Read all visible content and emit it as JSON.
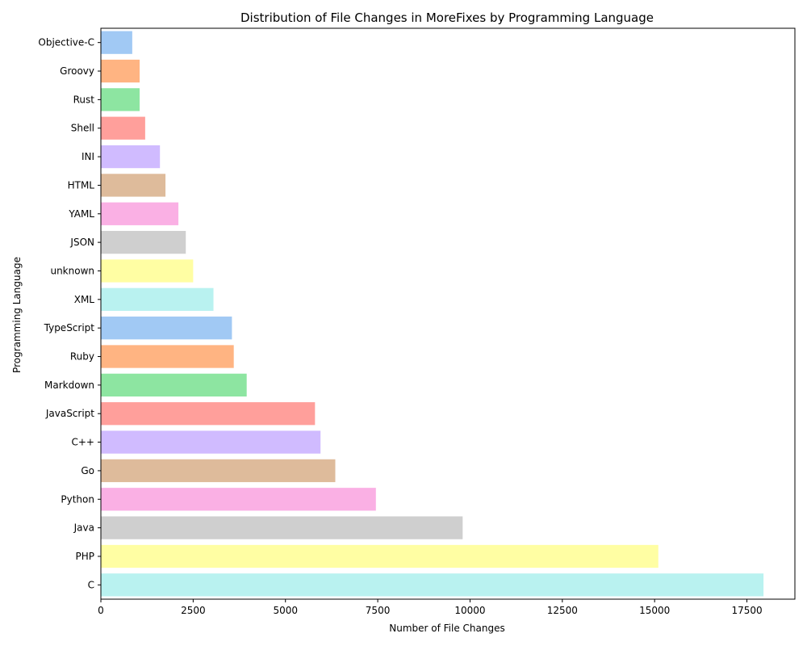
{
  "chart_data": {
    "type": "bar",
    "orientation": "horizontal",
    "title": "Distribution of File Changes in MoreFixes by Programming Language",
    "xlabel": "Number of File Changes",
    "ylabel": "Programming Language",
    "xlim": [
      0,
      18800
    ],
    "x_ticks": [
      "0",
      "2500",
      "5000",
      "7500",
      "10000",
      "12500",
      "15000",
      "17500"
    ],
    "grid": false,
    "categories": [
      "Objective-C",
      "Groovy",
      "Rust",
      "Shell",
      "INI",
      "HTML",
      "YAML",
      "JSON",
      "unknown",
      "XML",
      "TypeScript",
      "Ruby",
      "Markdown",
      "JavaScript",
      "C++",
      "Go",
      "Python",
      "Java",
      "PHP",
      "C"
    ],
    "values": [
      850,
      1050,
      1050,
      1200,
      1600,
      1750,
      2100,
      2300,
      2500,
      3050,
      3550,
      3600,
      3950,
      5800,
      5950,
      6350,
      7450,
      9800,
      15100,
      17950
    ],
    "colors": [
      "#a1c9f4",
      "#ffb482",
      "#8de5a1",
      "#ff9f9b",
      "#d0bbff",
      "#debb9b",
      "#fab0e4",
      "#cfcfcf",
      "#fffea3",
      "#b9f2f0",
      "#a1c9f4",
      "#ffb482",
      "#8de5a1",
      "#ff9f9b",
      "#d0bbff",
      "#debb9b",
      "#fab0e4",
      "#cfcfcf",
      "#fffea3",
      "#b9f2f0"
    ]
  }
}
